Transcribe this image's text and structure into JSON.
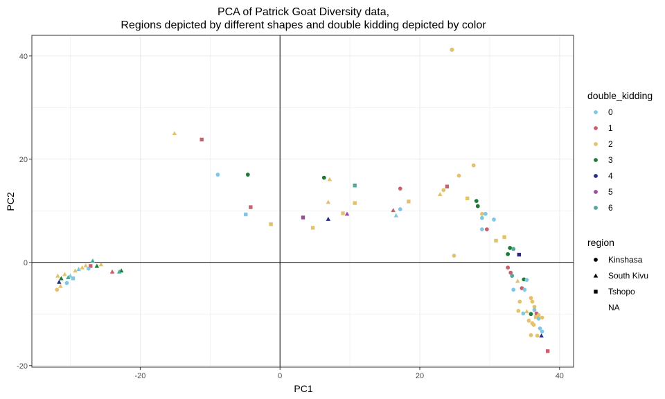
{
  "chart_data": {
    "type": "scatter",
    "title_lines": [
      "PCA of Patrick Goat Diversity data,",
      "Regions depicted by different shapes and double kidding depicted by color"
    ],
    "xlabel": "PC1",
    "ylabel": "PC2",
    "xlim": [
      -35.5,
      42
    ],
    "ylim": [
      -20.3,
      44
    ],
    "x_ticks": [
      -20,
      0,
      20,
      40
    ],
    "y_ticks": [
      -20,
      0,
      20,
      40
    ],
    "x_tick_labels": [
      "-20",
      "0",
      "20",
      "40"
    ],
    "y_tick_labels": [
      "-20",
      "0",
      "20",
      "40"
    ],
    "grid": true,
    "reference_lines": {
      "x": 0,
      "y": 0
    },
    "legend_placement": "right",
    "color_legend": {
      "title": "double_kidding",
      "entries": [
        {
          "label": "0",
          "color": "#7ec8e3"
        },
        {
          "label": "1",
          "color": "#c9606b"
        },
        {
          "label": "2",
          "color": "#e3c26c"
        },
        {
          "label": "3",
          "color": "#1b7a33"
        },
        {
          "label": "4",
          "color": "#2b2a87"
        },
        {
          "label": "5",
          "color": "#9b4b9a"
        },
        {
          "label": "6",
          "color": "#4fa89b"
        }
      ]
    },
    "shape_legend": {
      "title": "region",
      "entries": [
        {
          "label": "Kinshasa",
          "shape": "circle"
        },
        {
          "label": "South Kivu",
          "shape": "triangle"
        },
        {
          "label": "Tshopo",
          "shape": "square"
        },
        {
          "label": "NA",
          "shape": "none"
        }
      ]
    },
    "points": [
      {
        "x": 24.6,
        "y": 41.2,
        "c": "3",
        "s": "circle"
      },
      {
        "x": 24.6,
        "y": 41.2,
        "c": "2",
        "s": "circle"
      },
      {
        "x": -15.1,
        "y": 25.0,
        "c": "2",
        "s": "triangle"
      },
      {
        "x": -11.2,
        "y": 23.8,
        "c": "1",
        "s": "square"
      },
      {
        "x": -8.9,
        "y": 17.0,
        "c": "0",
        "s": "circle"
      },
      {
        "x": -4.6,
        "y": 17.0,
        "c": "3",
        "s": "circle"
      },
      {
        "x": -4.2,
        "y": 10.7,
        "c": "1",
        "s": "square"
      },
      {
        "x": -4.9,
        "y": 9.3,
        "c": "0",
        "s": "square"
      },
      {
        "x": -1.3,
        "y": 7.4,
        "c": "2",
        "s": "square"
      },
      {
        "x": 3.3,
        "y": 8.7,
        "c": "5",
        "s": "square"
      },
      {
        "x": 4.7,
        "y": 6.7,
        "c": "2",
        "s": "square"
      },
      {
        "x": 6.3,
        "y": 16.4,
        "c": "3",
        "s": "circle"
      },
      {
        "x": 7.1,
        "y": 16.1,
        "c": "2",
        "s": "triangle"
      },
      {
        "x": 6.9,
        "y": 11.7,
        "c": "2",
        "s": "triangle"
      },
      {
        "x": 6.9,
        "y": 8.4,
        "c": "4",
        "s": "triangle"
      },
      {
        "x": 9.0,
        "y": 9.5,
        "c": "2",
        "s": "square"
      },
      {
        "x": 9.6,
        "y": 9.4,
        "c": "5",
        "s": "triangle"
      },
      {
        "x": 10.7,
        "y": 14.9,
        "c": "6",
        "s": "square"
      },
      {
        "x": 10.7,
        "y": 11.5,
        "c": "2",
        "s": "square"
      },
      {
        "x": 16.2,
        "y": 10.1,
        "c": "1",
        "s": "triangle"
      },
      {
        "x": 16.6,
        "y": 9.1,
        "c": "0",
        "s": "triangle"
      },
      {
        "x": 17.2,
        "y": 14.3,
        "c": "1",
        "s": "circle"
      },
      {
        "x": 17.2,
        "y": 10.3,
        "c": "0",
        "s": "circle"
      },
      {
        "x": 18.4,
        "y": 11.8,
        "c": "2",
        "s": "square"
      },
      {
        "x": 22.9,
        "y": 13.2,
        "c": "2",
        "s": "triangle"
      },
      {
        "x": 23.4,
        "y": 14.0,
        "c": "2",
        "s": "circle"
      },
      {
        "x": 23.9,
        "y": 14.7,
        "c": "1",
        "s": "square"
      },
      {
        "x": 25.6,
        "y": 16.8,
        "c": "2",
        "s": "circle"
      },
      {
        "x": 27.7,
        "y": 18.8,
        "c": "2",
        "s": "circle"
      },
      {
        "x": 24.9,
        "y": 1.3,
        "c": "2",
        "s": "circle"
      },
      {
        "x": 26.8,
        "y": 12.4,
        "c": "2",
        "s": "square"
      },
      {
        "x": 28.1,
        "y": 11.9,
        "c": "3",
        "s": "circle"
      },
      {
        "x": 28.3,
        "y": 10.9,
        "c": "3",
        "s": "circle"
      },
      {
        "x": 28.9,
        "y": 9.4,
        "c": "2",
        "s": "circle"
      },
      {
        "x": 29.4,
        "y": 9.4,
        "c": "0",
        "s": "circle"
      },
      {
        "x": 28.9,
        "y": 8.6,
        "c": "0",
        "s": "circle"
      },
      {
        "x": 30.6,
        "y": 8.3,
        "c": "0",
        "s": "circle"
      },
      {
        "x": 28.9,
        "y": 6.4,
        "c": "0",
        "s": "circle"
      },
      {
        "x": 29.6,
        "y": 6.4,
        "c": "1",
        "s": "circle"
      },
      {
        "x": 30.9,
        "y": 4.2,
        "c": "2",
        "s": "square"
      },
      {
        "x": 32.1,
        "y": 4.9,
        "c": "2",
        "s": "square"
      },
      {
        "x": 32.9,
        "y": 2.8,
        "c": "3",
        "s": "circle"
      },
      {
        "x": 33.4,
        "y": 2.6,
        "c": "6",
        "s": "circle"
      },
      {
        "x": 32.6,
        "y": 1.6,
        "c": "3",
        "s": "circle"
      },
      {
        "x": 34.2,
        "y": 1.5,
        "c": "4",
        "s": "square"
      },
      {
        "x": 32.6,
        "y": -1.0,
        "c": "1",
        "s": "circle"
      },
      {
        "x": 33.0,
        "y": -2.0,
        "c": "1",
        "s": "circle"
      },
      {
        "x": 33.2,
        "y": -2.6,
        "c": "6",
        "s": "circle"
      },
      {
        "x": 34.0,
        "y": -3.6,
        "c": "2",
        "s": "triangle"
      },
      {
        "x": 34.9,
        "y": -3.3,
        "c": "3",
        "s": "circle"
      },
      {
        "x": 35.3,
        "y": -3.4,
        "c": "0",
        "s": "circle"
      },
      {
        "x": 33.4,
        "y": -5.3,
        "c": "0",
        "s": "circle"
      },
      {
        "x": 34.6,
        "y": -5.0,
        "c": "1",
        "s": "circle"
      },
      {
        "x": 35.0,
        "y": -5.3,
        "c": "0",
        "s": "circle"
      },
      {
        "x": 35.9,
        "y": -6.9,
        "c": "2",
        "s": "circle"
      },
      {
        "x": 36.1,
        "y": -7.6,
        "c": "2",
        "s": "circle"
      },
      {
        "x": 34.3,
        "y": -7.6,
        "c": "2",
        "s": "circle"
      },
      {
        "x": 36.4,
        "y": -8.6,
        "c": "2",
        "s": "circle"
      },
      {
        "x": 34.1,
        "y": -9.4,
        "c": "2",
        "s": "circle"
      },
      {
        "x": 34.8,
        "y": -9.9,
        "c": "0",
        "s": "circle"
      },
      {
        "x": 35.3,
        "y": -9.5,
        "c": "2",
        "s": "triangle"
      },
      {
        "x": 35.9,
        "y": -10.0,
        "c": "3",
        "s": "circle"
      },
      {
        "x": 36.4,
        "y": -9.2,
        "c": "0",
        "s": "circle"
      },
      {
        "x": 36.7,
        "y": -9.9,
        "c": "1",
        "s": "circle"
      },
      {
        "x": 37.0,
        "y": -10.2,
        "c": "2",
        "s": "circle"
      },
      {
        "x": 36.6,
        "y": -10.6,
        "c": "2",
        "s": "square"
      },
      {
        "x": 35.6,
        "y": -11.3,
        "c": "2",
        "s": "circle"
      },
      {
        "x": 36.1,
        "y": -11.8,
        "c": "2",
        "s": "circle"
      },
      {
        "x": 37.0,
        "y": -10.9,
        "c": "0",
        "s": "circle"
      },
      {
        "x": 37.5,
        "y": -10.7,
        "c": "2",
        "s": "circle"
      },
      {
        "x": 36.3,
        "y": -12.1,
        "c": "2",
        "s": "circle"
      },
      {
        "x": 37.2,
        "y": -12.8,
        "c": "0",
        "s": "circle"
      },
      {
        "x": 37.5,
        "y": -13.4,
        "c": "0",
        "s": "circle"
      },
      {
        "x": 35.9,
        "y": -14.1,
        "c": "2",
        "s": "circle"
      },
      {
        "x": 36.8,
        "y": -14.2,
        "c": "2",
        "s": "circle"
      },
      {
        "x": 37.4,
        "y": -14.2,
        "c": "4",
        "s": "triangle"
      },
      {
        "x": 38.3,
        "y": -17.2,
        "c": "1",
        "s": "square"
      },
      {
        "x": -22.7,
        "y": -1.6,
        "c": "3",
        "s": "triangle"
      },
      {
        "x": -23.0,
        "y": -1.8,
        "c": "6",
        "s": "triangle"
      },
      {
        "x": -24.0,
        "y": -1.8,
        "c": "1",
        "s": "triangle"
      },
      {
        "x": -25.6,
        "y": -0.4,
        "c": "2",
        "s": "triangle"
      },
      {
        "x": -26.2,
        "y": -0.7,
        "c": "3",
        "s": "triangle"
      },
      {
        "x": -26.8,
        "y": 0.3,
        "c": "6",
        "s": "triangle"
      },
      {
        "x": -27.1,
        "y": -0.7,
        "c": "1",
        "s": "square"
      },
      {
        "x": -27.4,
        "y": -1.2,
        "c": "0",
        "s": "circle"
      },
      {
        "x": -27.8,
        "y": -0.6,
        "c": "2",
        "s": "triangle"
      },
      {
        "x": -28.3,
        "y": -1.0,
        "c": "2",
        "s": "triangle"
      },
      {
        "x": -28.8,
        "y": -1.3,
        "c": "0",
        "s": "triangle"
      },
      {
        "x": -29.3,
        "y": -1.6,
        "c": "2",
        "s": "triangle"
      },
      {
        "x": -30.0,
        "y": -2.6,
        "c": "0",
        "s": "triangle"
      },
      {
        "x": -30.3,
        "y": -2.9,
        "c": "6",
        "s": "triangle"
      },
      {
        "x": -30.8,
        "y": -2.3,
        "c": "2",
        "s": "triangle"
      },
      {
        "x": -31.3,
        "y": -3.1,
        "c": "3",
        "s": "triangle"
      },
      {
        "x": -31.6,
        "y": -3.8,
        "c": "4",
        "s": "triangle"
      },
      {
        "x": -31.8,
        "y": -2.6,
        "c": "2",
        "s": "triangle"
      },
      {
        "x": -31.4,
        "y": -4.6,
        "c": "2",
        "s": "triangle"
      },
      {
        "x": -31.9,
        "y": -5.3,
        "c": "2",
        "s": "circle"
      },
      {
        "x": -30.5,
        "y": -4.0,
        "c": "0",
        "s": "circle"
      },
      {
        "x": -29.6,
        "y": -3.1,
        "c": "0",
        "s": "square"
      }
    ]
  }
}
